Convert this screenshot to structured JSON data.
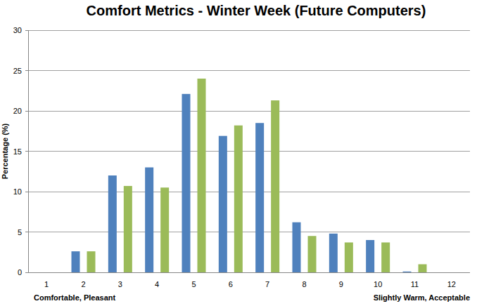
{
  "chart_data": {
    "type": "bar",
    "title": "Comfort Metrics - Winter Week (Future Computers)",
    "y_label": "Percentage (%)",
    "annotations": [
      "Comfortable, Pleasant",
      "Slightly Warm, Acceptable"
    ],
    "categories": [
      "1",
      "2",
      "3",
      "4",
      "5",
      "6",
      "7",
      "8",
      "9",
      "10",
      "11",
      "12"
    ],
    "series": [
      {
        "color": "#4f81bd",
        "values": [
          0,
          2.6,
          12.0,
          13.0,
          22.1,
          16.9,
          18.5,
          6.2,
          4.8,
          4.0,
          0.1,
          0
        ]
      },
      {
        "color": "#9bbb59",
        "values": [
          0,
          2.6,
          10.7,
          10.5,
          24.0,
          18.2,
          21.3,
          4.5,
          3.7,
          3.7,
          1.0,
          0
        ]
      }
    ],
    "ylim": [
      0,
      30
    ],
    "yticks": [
      0,
      5,
      10,
      15,
      20,
      25,
      30
    ],
    "grid": true
  }
}
